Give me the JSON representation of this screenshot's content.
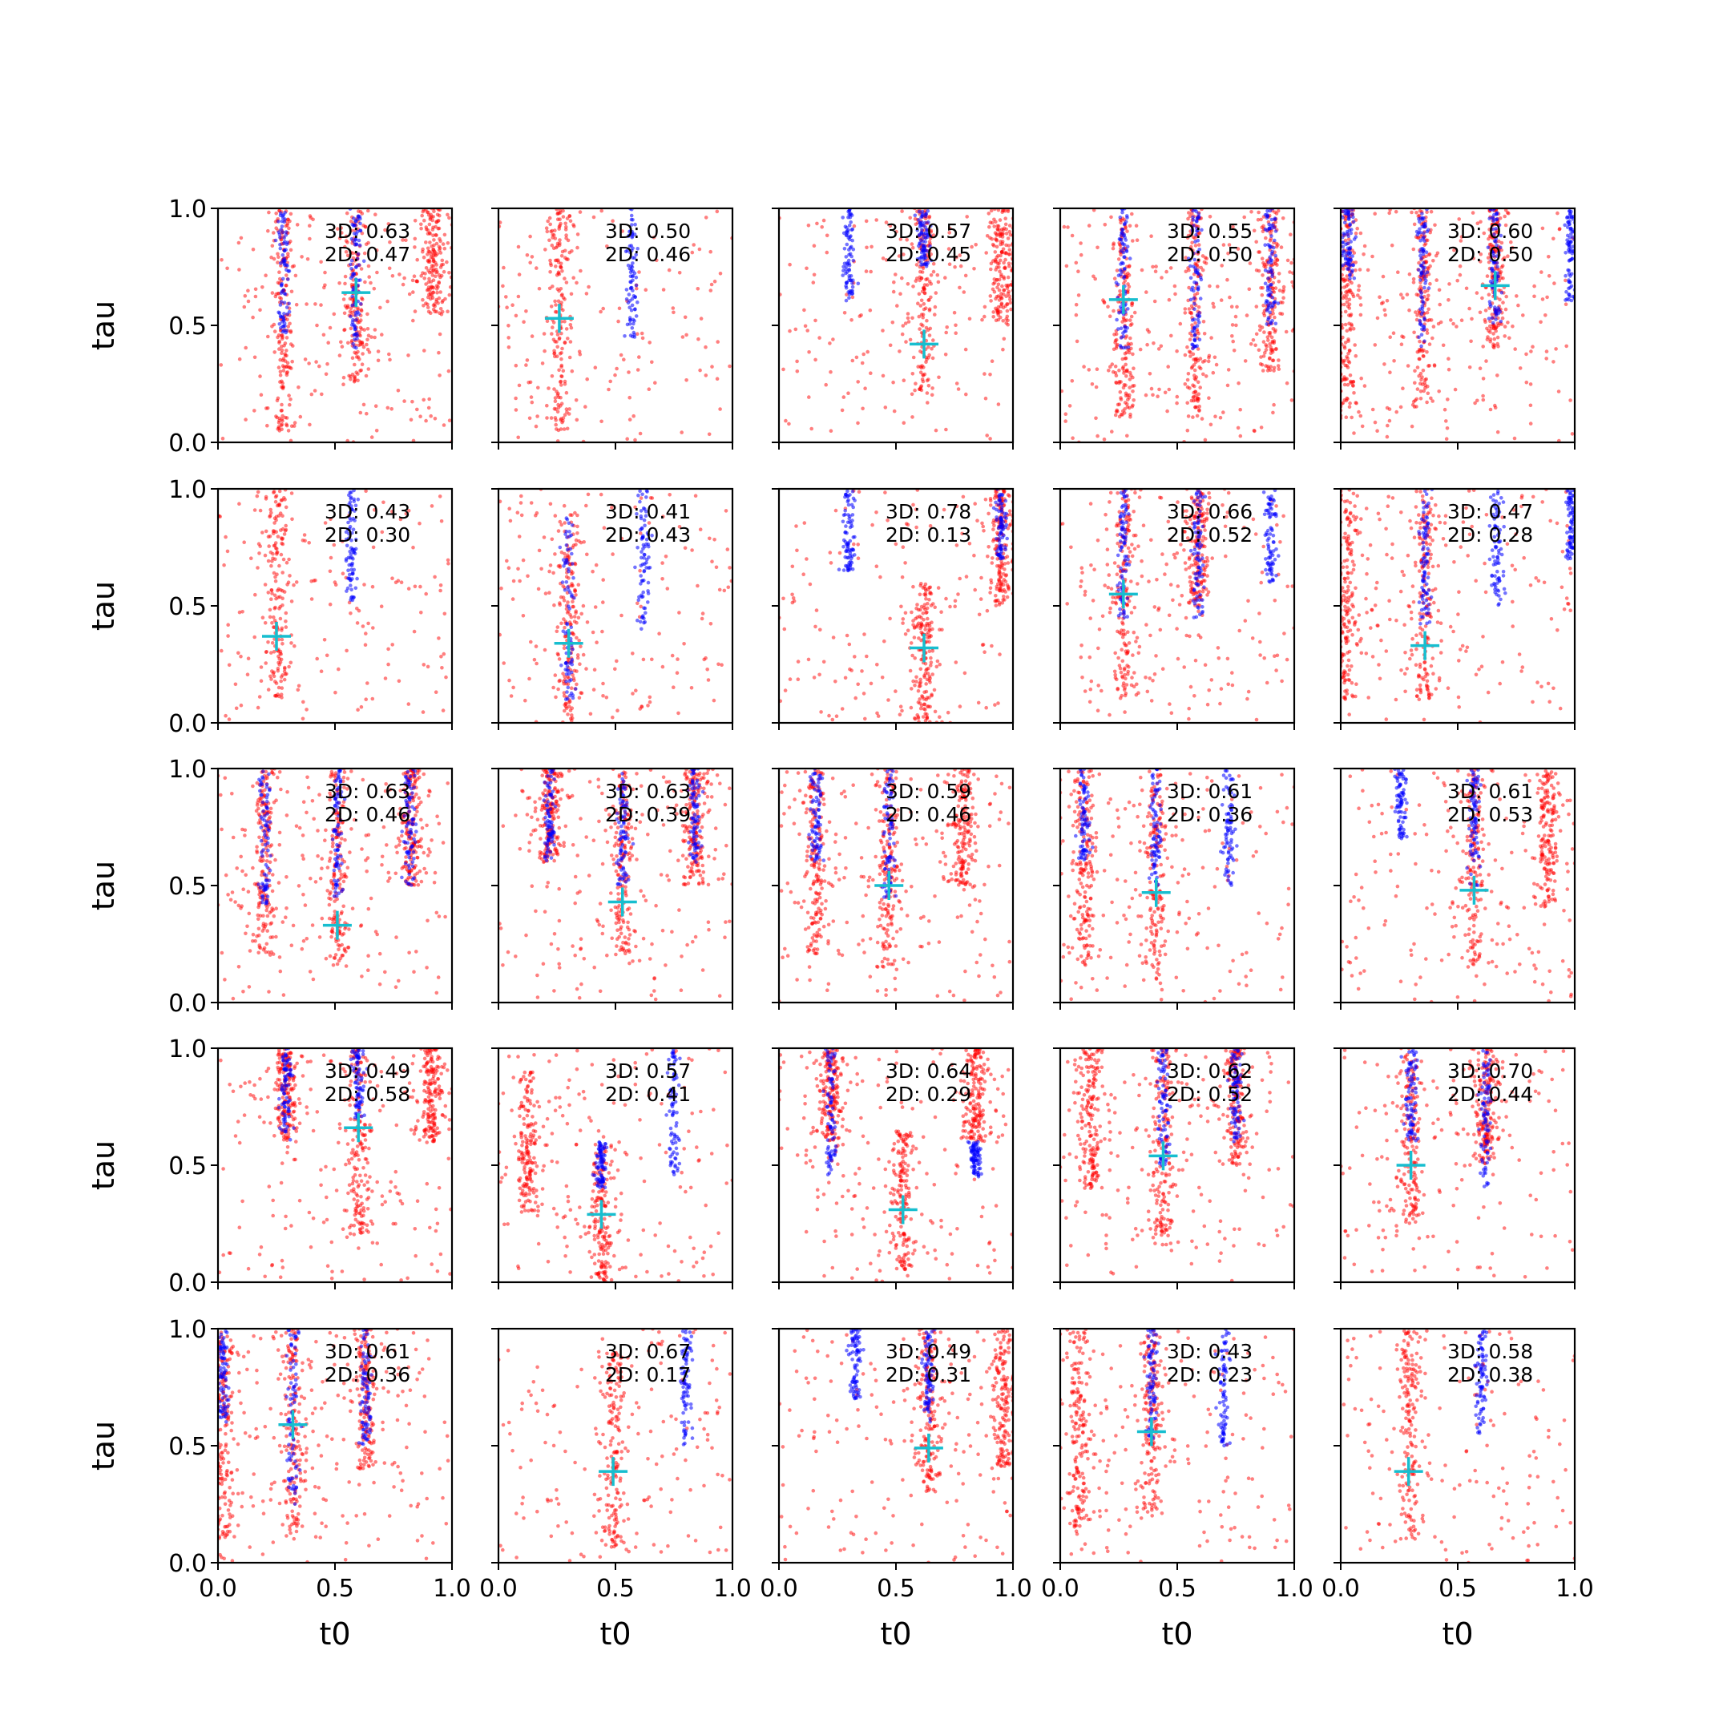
{
  "chart_data": {
    "type": "scatter",
    "grid": {
      "rows": 5,
      "cols": 5
    },
    "xlabel": "t0",
    "ylabel": "tau",
    "xlim": [
      0,
      1
    ],
    "ylim": [
      0,
      1
    ],
    "x_ticks": [
      "0.0",
      "0.5",
      "1.0"
    ],
    "y_ticks": [
      "0.0",
      "0.5",
      "1.0"
    ],
    "grid_lines": false,
    "series_colors": {
      "red": "#ff0000",
      "blue": "#0000ff",
      "marker": "#17becf"
    },
    "panels": [
      {
        "annotation": [
          "3D: 0.63",
          "2D: 0.47"
        ],
        "marker": [
          0.59,
          0.64
        ],
        "red_stripes": [
          [
            0.28,
            0.05,
            1.0
          ],
          [
            0.59,
            0.25,
            1.0
          ],
          [
            0.92,
            0.55,
            1.0
          ]
        ],
        "blue_stripes": [
          [
            0.28,
            0.45,
            1.0
          ],
          [
            0.59,
            0.4,
            1.0
          ]
        ]
      },
      {
        "annotation": [
          "3D: 0.50",
          "2D: 0.46"
        ],
        "marker": [
          0.26,
          0.53
        ],
        "red_stripes": [
          [
            0.26,
            0.05,
            1.0
          ]
        ],
        "blue_stripes": [
          [
            0.57,
            0.45,
            1.0
          ]
        ]
      },
      {
        "annotation": [
          "3D: 0.57",
          "2D: 0.45"
        ],
        "marker": [
          0.62,
          0.42
        ],
        "red_stripes": [
          [
            0.62,
            0.2,
            1.0
          ],
          [
            0.95,
            0.5,
            1.0
          ]
        ],
        "blue_stripes": [
          [
            0.3,
            0.6,
            1.0
          ],
          [
            0.62,
            0.75,
            1.0
          ]
        ]
      },
      {
        "annotation": [
          "3D: 0.55",
          "2D: 0.50"
        ],
        "marker": [
          0.27,
          0.61
        ],
        "red_stripes": [
          [
            0.27,
            0.1,
            1.0
          ],
          [
            0.58,
            0.1,
            1.0
          ],
          [
            0.9,
            0.3,
            1.0
          ]
        ],
        "blue_stripes": [
          [
            0.27,
            0.4,
            1.0
          ],
          [
            0.58,
            0.4,
            1.0
          ],
          [
            0.9,
            0.5,
            1.0
          ]
        ]
      },
      {
        "annotation": [
          "3D: 0.60",
          "2D: 0.50"
        ],
        "marker": [
          0.66,
          0.67
        ],
        "red_stripes": [
          [
            0.03,
            0.1,
            1.0
          ],
          [
            0.35,
            0.15,
            1.0
          ],
          [
            0.66,
            0.4,
            1.0
          ]
        ],
        "blue_stripes": [
          [
            0.03,
            0.7,
            1.0
          ],
          [
            0.35,
            0.4,
            1.0
          ],
          [
            0.66,
            0.5,
            1.0
          ],
          [
            0.98,
            0.6,
            1.0
          ]
        ]
      },
      {
        "annotation": [
          "3D: 0.43",
          "2D: 0.30"
        ],
        "marker": [
          0.25,
          0.37
        ],
        "red_stripes": [
          [
            0.25,
            0.1,
            1.0
          ]
        ],
        "blue_stripes": [
          [
            0.57,
            0.5,
            1.0
          ]
        ]
      },
      {
        "annotation": [
          "3D: 0.41",
          "2D: 0.43"
        ],
        "marker": [
          0.3,
          0.34
        ],
        "red_stripes": [
          [
            0.3,
            0.0,
            0.9
          ]
        ],
        "blue_stripes": [
          [
            0.3,
            0.1,
            0.9
          ],
          [
            0.62,
            0.4,
            1.0
          ]
        ]
      },
      {
        "annotation": [
          "3D: 0.78",
          "2D: 0.13"
        ],
        "marker": [
          0.62,
          0.32
        ],
        "red_stripes": [
          [
            0.62,
            0.0,
            0.6
          ],
          [
            0.95,
            0.5,
            1.0
          ]
        ],
        "blue_stripes": [
          [
            0.3,
            0.65,
            1.0
          ],
          [
            0.95,
            0.7,
            1.0
          ]
        ]
      },
      {
        "annotation": [
          "3D: 0.66",
          "2D: 0.52"
        ],
        "marker": [
          0.27,
          0.55
        ],
        "red_stripes": [
          [
            0.27,
            0.1,
            1.0
          ],
          [
            0.59,
            0.5,
            1.0
          ]
        ],
        "blue_stripes": [
          [
            0.27,
            0.45,
            1.0
          ],
          [
            0.59,
            0.45,
            1.0
          ],
          [
            0.9,
            0.6,
            1.0
          ]
        ]
      },
      {
        "annotation": [
          "3D: 0.47",
          "2D: 0.28"
        ],
        "marker": [
          0.36,
          0.33
        ],
        "red_stripes": [
          [
            0.03,
            0.1,
            1.0
          ],
          [
            0.36,
            0.1,
            1.0
          ]
        ],
        "blue_stripes": [
          [
            0.36,
            0.4,
            1.0
          ],
          [
            0.67,
            0.5,
            1.0
          ],
          [
            0.98,
            0.7,
            1.0
          ]
        ]
      },
      {
        "annotation": [
          "3D: 0.63",
          "2D: 0.46"
        ],
        "marker": [
          0.51,
          0.33
        ],
        "red_stripes": [
          [
            0.2,
            0.2,
            1.0
          ],
          [
            0.51,
            0.15,
            1.0
          ],
          [
            0.82,
            0.5,
            1.0
          ]
        ],
        "blue_stripes": [
          [
            0.2,
            0.4,
            1.0
          ],
          [
            0.51,
            0.45,
            1.0
          ],
          [
            0.82,
            0.5,
            1.0
          ]
        ]
      },
      {
        "annotation": [
          "3D: 0.63",
          "2D: 0.39"
        ],
        "marker": [
          0.53,
          0.43
        ],
        "red_stripes": [
          [
            0.22,
            0.6,
            1.0
          ],
          [
            0.53,
            0.2,
            1.0
          ],
          [
            0.84,
            0.5,
            1.0
          ]
        ],
        "blue_stripes": [
          [
            0.22,
            0.6,
            1.0
          ],
          [
            0.53,
            0.5,
            1.0
          ],
          [
            0.84,
            0.6,
            1.0
          ]
        ]
      },
      {
        "annotation": [
          "3D: 0.59",
          "2D: 0.46"
        ],
        "marker": [
          0.47,
          0.5
        ],
        "red_stripes": [
          [
            0.16,
            0.2,
            1.0
          ],
          [
            0.47,
            0.15,
            1.0
          ],
          [
            0.79,
            0.5,
            1.0
          ]
        ],
        "blue_stripes": [
          [
            0.16,
            0.6,
            1.0
          ],
          [
            0.47,
            0.45,
            1.0
          ]
        ]
      },
      {
        "annotation": [
          "3D: 0.61",
          "2D: 0.36"
        ],
        "marker": [
          0.41,
          0.47
        ],
        "red_stripes": [
          [
            0.1,
            0.15,
            1.0
          ],
          [
            0.41,
            0.1,
            1.0
          ]
        ],
        "blue_stripes": [
          [
            0.1,
            0.6,
            1.0
          ],
          [
            0.41,
            0.5,
            1.0
          ],
          [
            0.72,
            0.5,
            1.0
          ]
        ]
      },
      {
        "annotation": [
          "3D: 0.61",
          "2D: 0.53"
        ],
        "marker": [
          0.57,
          0.48
        ],
        "red_stripes": [
          [
            0.57,
            0.15,
            1.0
          ],
          [
            0.88,
            0.4,
            1.0
          ]
        ],
        "blue_stripes": [
          [
            0.26,
            0.7,
            1.0
          ],
          [
            0.57,
            0.5,
            1.0
          ]
        ]
      },
      {
        "annotation": [
          "3D: 0.49",
          "2D: 0.58"
        ],
        "marker": [
          0.6,
          0.66
        ],
        "red_stripes": [
          [
            0.29,
            0.6,
            1.0
          ],
          [
            0.6,
            0.2,
            1.0
          ],
          [
            0.91,
            0.6,
            1.0
          ]
        ],
        "blue_stripes": [
          [
            0.29,
            0.6,
            1.0
          ],
          [
            0.6,
            0.7,
            1.0
          ]
        ]
      },
      {
        "annotation": [
          "3D: 0.57",
          "2D: 0.41"
        ],
        "marker": [
          0.44,
          0.29
        ],
        "red_stripes": [
          [
            0.13,
            0.3,
            0.9
          ],
          [
            0.44,
            0.0,
            0.6
          ]
        ],
        "blue_stripes": [
          [
            0.44,
            0.4,
            0.6
          ],
          [
            0.75,
            0.45,
            1.0
          ]
        ]
      },
      {
        "annotation": [
          "3D: 0.64",
          "2D: 0.29"
        ],
        "marker": [
          0.53,
          0.31
        ],
        "red_stripes": [
          [
            0.22,
            0.6,
            1.0
          ],
          [
            0.53,
            0.05,
            0.65
          ],
          [
            0.84,
            0.6,
            1.0
          ]
        ],
        "blue_stripes": [
          [
            0.22,
            0.45,
            1.0
          ],
          [
            0.84,
            0.45,
            0.6
          ]
        ]
      },
      {
        "annotation": [
          "3D: 0.62",
          "2D: 0.52"
        ],
        "marker": [
          0.44,
          0.54
        ],
        "red_stripes": [
          [
            0.13,
            0.4,
            1.0
          ],
          [
            0.44,
            0.15,
            1.0
          ],
          [
            0.75,
            0.5,
            1.0
          ]
        ],
        "blue_stripes": [
          [
            0.44,
            0.5,
            1.0
          ],
          [
            0.75,
            0.6,
            1.0
          ]
        ]
      },
      {
        "annotation": [
          "3D: 0.70",
          "2D: 0.44"
        ],
        "marker": [
          0.3,
          0.5
        ],
        "red_stripes": [
          [
            0.3,
            0.25,
            1.0
          ],
          [
            0.62,
            0.5,
            1.0
          ]
        ],
        "blue_stripes": [
          [
            0.3,
            0.6,
            1.0
          ],
          [
            0.62,
            0.4,
            1.0
          ]
        ]
      },
      {
        "annotation": [
          "3D: 0.61",
          "2D: 0.36"
        ],
        "marker": [
          0.32,
          0.59
        ],
        "red_stripes": [
          [
            0.02,
            0.1,
            1.0
          ],
          [
            0.32,
            0.1,
            1.0
          ],
          [
            0.63,
            0.4,
            1.0
          ]
        ],
        "blue_stripes": [
          [
            0.02,
            0.6,
            1.0
          ],
          [
            0.32,
            0.25,
            1.0
          ],
          [
            0.63,
            0.5,
            1.0
          ]
        ]
      },
      {
        "annotation": [
          "3D: 0.67",
          "2D: 0.17"
        ],
        "marker": [
          0.49,
          0.39
        ],
        "red_stripes": [
          [
            0.49,
            0.05,
            0.9
          ]
        ],
        "blue_stripes": [
          [
            0.8,
            0.5,
            1.0
          ]
        ]
      },
      {
        "annotation": [
          "3D: 0.49",
          "2D: 0.31"
        ],
        "marker": [
          0.64,
          0.49
        ],
        "red_stripes": [
          [
            0.64,
            0.3,
            1.0
          ],
          [
            0.96,
            0.4,
            1.0
          ]
        ],
        "blue_stripes": [
          [
            0.33,
            0.7,
            1.0
          ],
          [
            0.64,
            0.6,
            1.0
          ]
        ]
      },
      {
        "annotation": [
          "3D: 0.43",
          "2D: 0.23"
        ],
        "marker": [
          0.39,
          0.56
        ],
        "red_stripes": [
          [
            0.08,
            0.15,
            1.0
          ],
          [
            0.39,
            0.2,
            1.0
          ]
        ],
        "blue_stripes": [
          [
            0.39,
            0.5,
            1.0
          ],
          [
            0.7,
            0.5,
            1.0
          ]
        ]
      },
      {
        "annotation": [
          "3D: 0.58",
          "2D: 0.38"
        ],
        "marker": [
          0.29,
          0.39
        ],
        "red_stripes": [
          [
            0.29,
            0.1,
            1.0
          ]
        ],
        "blue_stripes": [
          [
            0.6,
            0.55,
            1.0
          ]
        ]
      }
    ]
  }
}
